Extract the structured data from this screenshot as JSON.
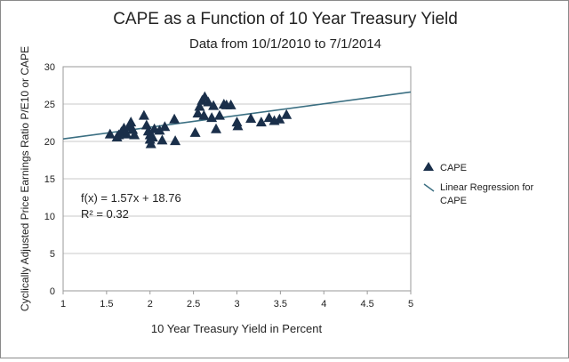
{
  "chart_data": {
    "type": "scatter",
    "title": "CAPE as a Function of 10 Year Treasury Yield",
    "subtitle": "Data from 10/1/2010 to 7/1/2014",
    "xlabel": "10 Year Treasury Yield in Percent",
    "ylabel": "Cyclically Adjusted Price Earnings Ratio P/E10 or CAPE",
    "xlim": [
      1,
      5
    ],
    "ylim": [
      0,
      30
    ],
    "x_ticks": [
      "1",
      "1.5",
      "2",
      "2.5",
      "3",
      "3.5",
      "4",
      "4.5",
      "5"
    ],
    "y_ticks": [
      "0",
      "5",
      "10",
      "15",
      "20",
      "25",
      "30"
    ],
    "grid": "horizontal",
    "legend_position": "right",
    "colors": {
      "points": "#1a2f4a",
      "regression": "#3b6f82",
      "grid": "#c8c8c8"
    },
    "series": [
      {
        "name": "CAPE",
        "marker": "triangle",
        "points": [
          [
            1.54,
            21.0
          ],
          [
            1.62,
            20.6
          ],
          [
            1.64,
            20.9
          ],
          [
            1.67,
            21.3
          ],
          [
            1.7,
            21.8
          ],
          [
            1.73,
            21.0
          ],
          [
            1.76,
            22.0
          ],
          [
            1.78,
            22.6
          ],
          [
            1.8,
            21.6
          ],
          [
            1.82,
            20.9
          ],
          [
            1.93,
            23.5
          ],
          [
            1.96,
            22.2
          ],
          [
            1.98,
            21.4
          ],
          [
            2.0,
            20.9
          ],
          [
            2.0,
            20.3
          ],
          [
            2.01,
            19.7
          ],
          [
            2.03,
            20.6
          ],
          [
            2.05,
            21.7
          ],
          [
            2.11,
            21.5
          ],
          [
            2.14,
            20.2
          ],
          [
            2.17,
            22.0
          ],
          [
            2.28,
            23.0
          ],
          [
            2.29,
            20.1
          ],
          [
            2.52,
            21.2
          ],
          [
            2.55,
            23.8
          ],
          [
            2.57,
            24.7
          ],
          [
            2.6,
            25.5
          ],
          [
            2.62,
            23.5
          ],
          [
            2.63,
            26.0
          ],
          [
            2.67,
            25.3
          ],
          [
            2.71,
            23.2
          ],
          [
            2.73,
            24.8
          ],
          [
            2.76,
            21.7
          ],
          [
            2.8,
            23.5
          ],
          [
            2.85,
            25.0
          ],
          [
            2.88,
            24.9
          ],
          [
            2.93,
            24.9
          ],
          [
            3.0,
            22.6
          ],
          [
            3.01,
            22.1
          ],
          [
            3.16,
            23.1
          ],
          [
            3.28,
            22.6
          ],
          [
            3.37,
            23.2
          ],
          [
            3.43,
            22.8
          ],
          [
            3.49,
            23.0
          ],
          [
            3.57,
            23.6
          ]
        ]
      },
      {
        "name": "Linear Regression for CAPE",
        "type": "line",
        "slope": 1.57,
        "intercept": 18.76
      }
    ],
    "annotations": [
      "f(x) = 1.57x + 18.76",
      "R² = 0.32"
    ]
  }
}
